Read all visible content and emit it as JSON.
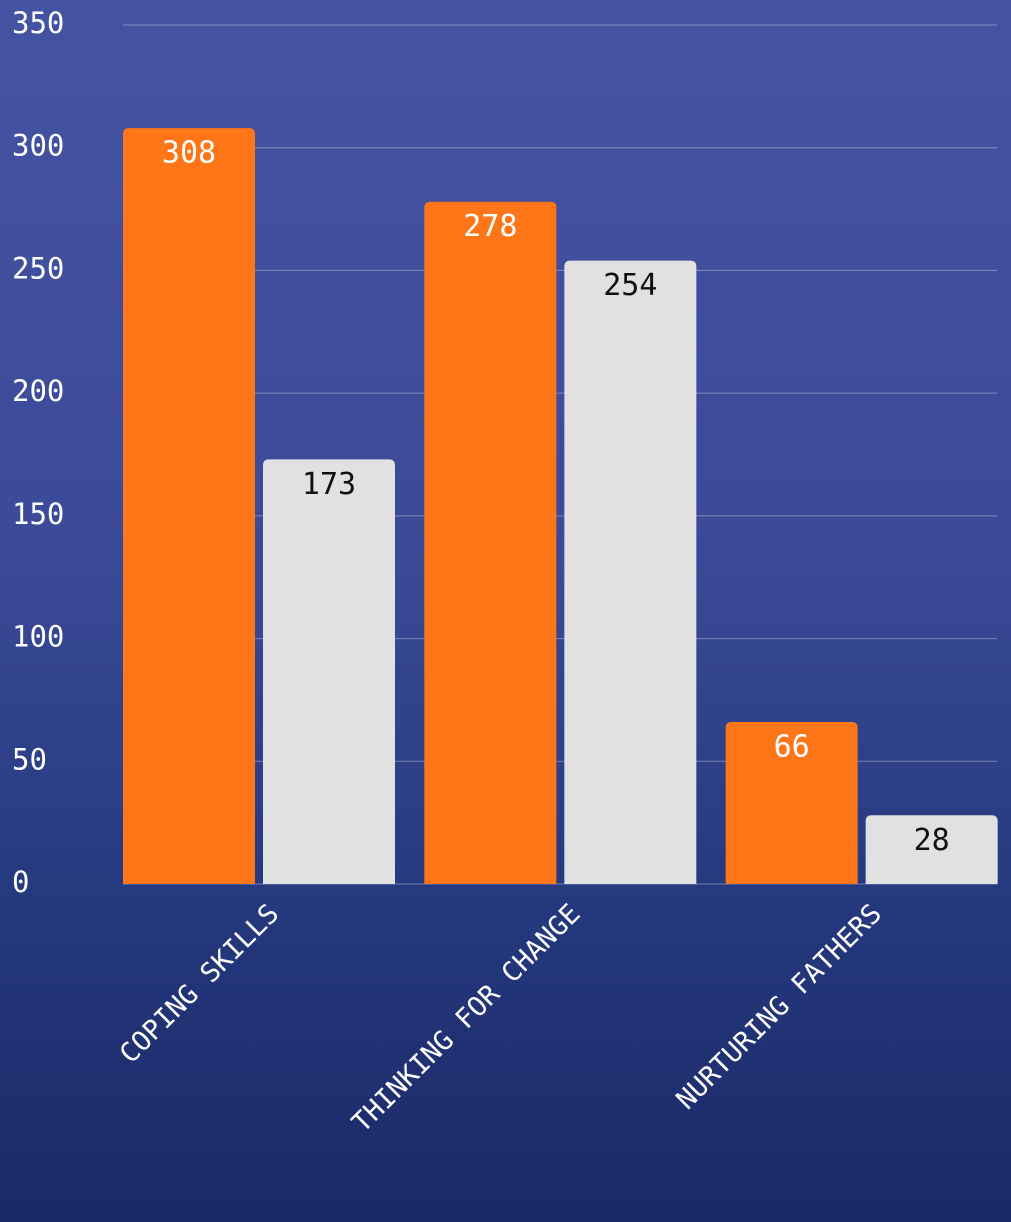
{
  "chart_data": {
    "type": "bar",
    "categories": [
      "COPING SKILLS",
      "THINKING FOR CHANGE",
      "NURTURING FATHERS"
    ],
    "series": [
      {
        "color": "#ff7619",
        "values": [
          308,
          278,
          66
        ]
      },
      {
        "color": "#e1e1e1",
        "values": [
          173,
          254,
          28
        ]
      }
    ],
    "ylim": [
      0,
      350
    ],
    "yticks": [
      0,
      50,
      100,
      150,
      200,
      250,
      300,
      350
    ],
    "grid": true
  }
}
